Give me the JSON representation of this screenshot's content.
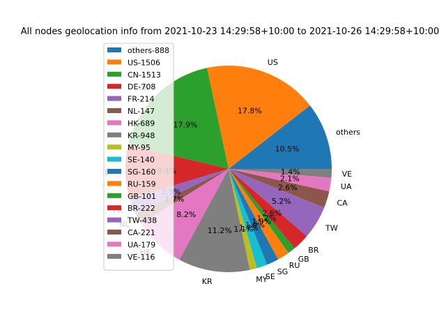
{
  "chart_data": {
    "type": "pie",
    "title": "All nodes geolocation info from 2021-10-23 14:29:58+10:00 to 2021-10-26 14:29:58+10:00",
    "slices": [
      {
        "label": "others",
        "legend": "others-888",
        "value": 888,
        "pct": "10.5%",
        "color": "#1f77b4"
      },
      {
        "label": "US",
        "legend": "US-1506",
        "value": 1506,
        "pct": "17.8%",
        "color": "#ff7f0e"
      },
      {
        "label": "CN",
        "legend": "CN-1513",
        "value": 1513,
        "pct": "17.9%",
        "color": "#2ca02c"
      },
      {
        "label": "DE",
        "legend": "DE-708",
        "value": 708,
        "pct": "8.4%",
        "color": "#d62728"
      },
      {
        "label": "FR",
        "legend": "FR-214",
        "value": 214,
        "pct": "2.5%",
        "color": "#9467bd"
      },
      {
        "label": "NL",
        "legend": "NL-147",
        "value": 147,
        "pct": "1.7%",
        "color": "#8c564b"
      },
      {
        "label": "HK",
        "legend": "HK-689",
        "value": 689,
        "pct": "8.2%",
        "color": "#e377c2"
      },
      {
        "label": "KR",
        "legend": "KR-948",
        "value": 948,
        "pct": "11.2%",
        "color": "#7f7f7f"
      },
      {
        "label": "MY",
        "legend": "MY-95",
        "value": 95,
        "pct": "1.1%",
        "color": "#bcbd22"
      },
      {
        "label": "SE",
        "legend": "SE-140",
        "value": 140,
        "pct": "1.7%",
        "color": "#17becf"
      },
      {
        "label": "SG",
        "legend": "SG-160",
        "value": 160,
        "pct": "1.9%",
        "color": "#1f77b4"
      },
      {
        "label": "RU",
        "legend": "RU-159",
        "value": 159,
        "pct": "1.9%",
        "color": "#ff7f0e"
      },
      {
        "label": "GB",
        "legend": "GB-101",
        "value": 101,
        "pct": "1.2%",
        "color": "#2ca02c"
      },
      {
        "label": "BR",
        "legend": "BR-222",
        "value": 222,
        "pct": "2.6%",
        "color": "#d62728"
      },
      {
        "label": "TW",
        "legend": "TW-438",
        "value": 438,
        "pct": "5.2%",
        "color": "#9467bd"
      },
      {
        "label": "CA",
        "legend": "CA-221",
        "value": 221,
        "pct": "2.6%",
        "color": "#8c564b"
      },
      {
        "label": "UA",
        "legend": "UA-179",
        "value": 179,
        "pct": "2.1%",
        "color": "#e377c2"
      },
      {
        "label": "VE",
        "legend": "VE-116",
        "value": 116,
        "pct": "1.4%",
        "color": "#7f7f7f"
      }
    ],
    "start_angle": "0 degrees (3 o'clock), counter-clockwise",
    "legend_position": "upper-left, overlapping pie"
  }
}
